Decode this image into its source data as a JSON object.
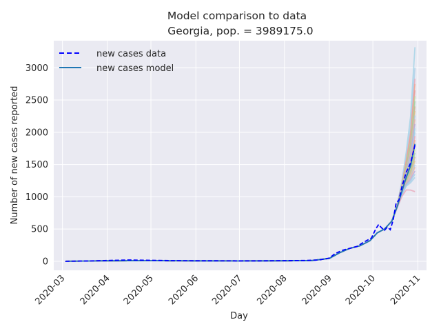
{
  "chart_data": {
    "type": "line",
    "title": "Model comparison to data",
    "subtitle": "Georgia, pop. = 3989175.0",
    "xlabel": "Day",
    "ylabel": "Number of new cases reported",
    "xlim": [
      "2020-02-24",
      "2020-11-07"
    ],
    "ylim": [
      -140,
      3420
    ],
    "grid": true,
    "legend_position": "top-left",
    "x_ticks": [
      "2020-03",
      "2020-04",
      "2020-05",
      "2020-06",
      "2020-07",
      "2020-08",
      "2020-09",
      "2020-10",
      "2020-11"
    ],
    "y_ticks": [
      0,
      500,
      1000,
      1500,
      2000,
      2500,
      3000
    ],
    "series": [
      {
        "name": "new cases data",
        "style": "dashed",
        "color": "#0000ff",
        "points": [
          [
            "2020-03-03",
            0
          ],
          [
            "2020-03-20",
            5
          ],
          [
            "2020-04-01",
            12
          ],
          [
            "2020-04-15",
            20
          ],
          [
            "2020-05-01",
            15
          ],
          [
            "2020-05-15",
            10
          ],
          [
            "2020-06-01",
            8
          ],
          [
            "2020-06-15",
            8
          ],
          [
            "2020-07-01",
            6
          ],
          [
            "2020-07-15",
            6
          ],
          [
            "2020-08-01",
            10
          ],
          [
            "2020-08-15",
            12
          ],
          [
            "2020-08-25",
            20
          ],
          [
            "2020-09-01",
            50
          ],
          [
            "2020-09-05",
            120
          ],
          [
            "2020-09-10",
            170
          ],
          [
            "2020-09-15",
            200
          ],
          [
            "2020-09-20",
            230
          ],
          [
            "2020-09-25",
            300
          ],
          [
            "2020-09-30",
            360
          ],
          [
            "2020-10-03",
            500
          ],
          [
            "2020-10-05",
            570
          ],
          [
            "2020-10-07",
            520
          ],
          [
            "2020-10-09",
            480
          ],
          [
            "2020-10-11",
            530
          ],
          [
            "2020-10-13",
            490
          ],
          [
            "2020-10-15",
            640
          ],
          [
            "2020-10-17",
            900
          ],
          [
            "2020-10-19",
            950
          ],
          [
            "2020-10-21",
            1150
          ],
          [
            "2020-10-24",
            1380
          ],
          [
            "2020-10-27",
            1520
          ],
          [
            "2020-10-30",
            1800
          ]
        ]
      },
      {
        "name": "new cases model",
        "style": "solid",
        "color": "#1f77b4",
        "points": [
          [
            "2020-03-03",
            0
          ],
          [
            "2020-04-01",
            8
          ],
          [
            "2020-05-01",
            10
          ],
          [
            "2020-06-01",
            6
          ],
          [
            "2020-07-01",
            5
          ],
          [
            "2020-08-01",
            8
          ],
          [
            "2020-08-20",
            12
          ],
          [
            "2020-09-01",
            45
          ],
          [
            "2020-09-08",
            130
          ],
          [
            "2020-09-15",
            200
          ],
          [
            "2020-09-22",
            240
          ],
          [
            "2020-09-29",
            320
          ],
          [
            "2020-10-04",
            440
          ],
          [
            "2020-10-09",
            500
          ],
          [
            "2020-10-14",
            620
          ],
          [
            "2020-10-18",
            860
          ],
          [
            "2020-10-21",
            1080
          ],
          [
            "2020-10-24",
            1300
          ],
          [
            "2020-10-27",
            1480
          ],
          [
            "2020-10-30",
            1820
          ]
        ]
      }
    ],
    "ensemble_endpoints": [
      3320,
      3000,
      2830,
      2750,
      2650,
      2560,
      2480,
      2400,
      2330,
      2260,
      2200,
      2130,
      2060,
      2000,
      1940,
      1880,
      1800,
      1730,
      1680,
      1620,
      1560,
      1500,
      1460,
      1400,
      1350,
      1300,
      1080
    ],
    "ensemble_colors": [
      "#9ed2e6",
      "#a6cde8",
      "#e9a3b5",
      "#f0a58c",
      "#e89a9a",
      "#b9d79a",
      "#9fd0a4",
      "#c9b18f",
      "#d7c08a",
      "#a8c8e0",
      "#e7b3a0",
      "#b4a6d8"
    ]
  }
}
